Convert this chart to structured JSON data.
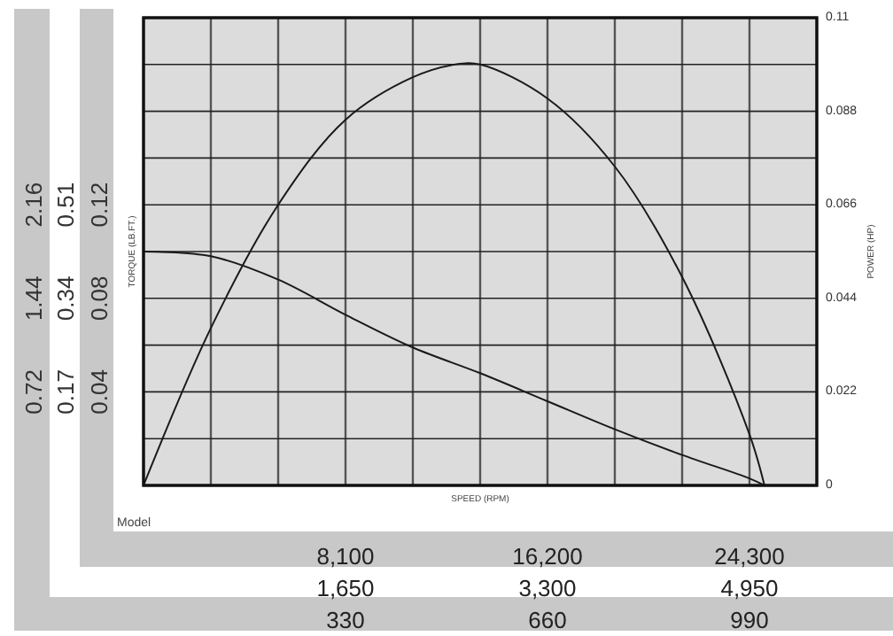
{
  "chart_data": [
    {
      "type": "line",
      "xlabel": "SPEED (RPM)",
      "ylabel": "TORQUE (LB.FT.)",
      "y2label": "POWER (HP)",
      "annotations": [
        "Model"
      ],
      "grid": true,
      "xlim": [
        0,
        27000
      ],
      "xticks": [
        {
          "value": 8100,
          "label": "8,100"
        },
        {
          "value": 16200,
          "label": "16,200"
        },
        {
          "value": 24300,
          "label": "24,300"
        }
      ],
      "x2lim": [
        0,
        5500
      ],
      "x2ticks": [
        {
          "value": 1650,
          "label": "1,650"
        },
        {
          "value": 3300,
          "label": "3,300"
        },
        {
          "value": 4950,
          "label": "4,950"
        }
      ],
      "ylim": [
        0,
        0.2
      ],
      "yticks": [
        0.04,
        0.08,
        0.12
      ],
      "y3lim": [
        0,
        0.85
      ],
      "y3ticks": [
        0.17,
        0.34,
        0.51
      ],
      "y2lim": [
        0,
        0.11
      ],
      "y2ticks": [
        0,
        0.022,
        0.044,
        0.066,
        0.088,
        0.11
      ],
      "series": [
        {
          "color": "#1a1a1a",
          "x": [
            0,
            2700,
            5400,
            8100,
            10800,
            13500,
            16200,
            18900,
            21600,
            24300,
            24900
          ],
          "values": [
            0.1,
            0.098,
            0.088,
            0.073,
            0.059,
            0.048,
            0.036,
            0.024,
            0.013,
            0.003,
            0
          ]
        },
        {
          "color": "#1a1a1a",
          "axis": "y2",
          "x": [
            0,
            2700,
            5400,
            8100,
            10800,
            12500,
            13500,
            16200,
            18900,
            21600,
            24300,
            24900
          ],
          "values": [
            0,
            0.037,
            0.066,
            0.086,
            0.096,
            0.099,
            0.099,
            0.091,
            0.075,
            0.049,
            0.012,
            0
          ]
        }
      ]
    },
    {
      "type": "line",
      "xlim": [
        0,
        1100
      ],
      "xticks": [
        330,
        660,
        990
      ],
      "ylim": [
        0,
        3.6
      ],
      "yticks": [
        0.72,
        1.44,
        2.16
      ]
    }
  ]
}
